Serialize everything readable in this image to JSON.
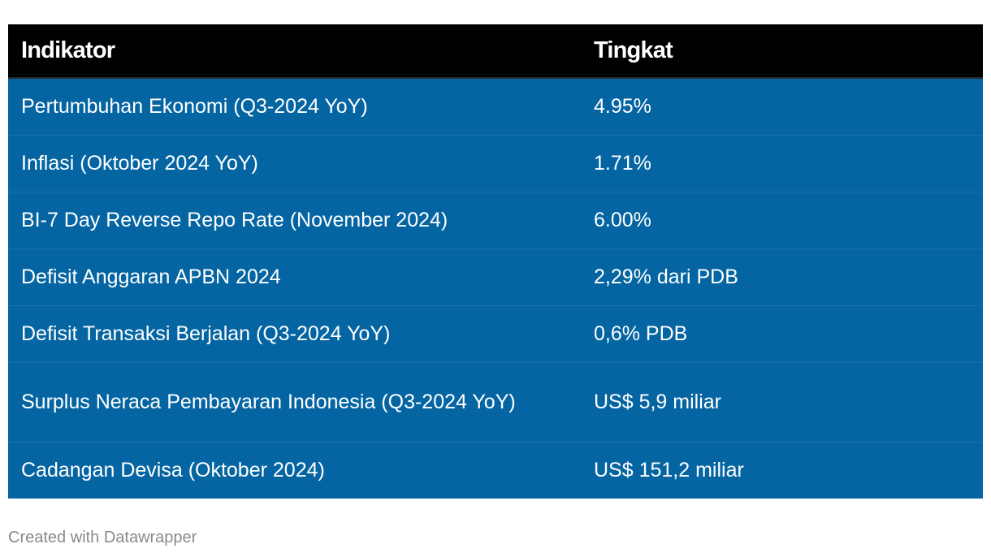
{
  "chart_data": {
    "type": "table",
    "columns": [
      "Indikator",
      "Tingkat"
    ],
    "rows": [
      [
        "Pertumbuhan Ekonomi (Q3-2024 YoY)",
        "4.95%"
      ],
      [
        "Inflasi (Oktober 2024 YoY)",
        "1.71%"
      ],
      [
        "BI-7 Day Reverse Repo Rate (November 2024)",
        "6.00%"
      ],
      [
        "Defisit Anggaran APBN 2024",
        "2,29% dari PDB"
      ],
      [
        "Defisit Transaksi Berjalan (Q3-2024 YoY)",
        "0,6% PDB"
      ],
      [
        "Surplus Neraca Pembayaran Indonesia (Q3-2024 YoY)",
        "US$ 5,9 miliar"
      ],
      [
        "Cadangan Devisa (Oktober 2024)",
        "US$ 151,2 miliar"
      ]
    ],
    "colors": {
      "header_bg": "#000000",
      "row_bg": "#0565a2",
      "text": "#ffffff"
    }
  },
  "footer": {
    "credit": "Created with Datawrapper"
  }
}
